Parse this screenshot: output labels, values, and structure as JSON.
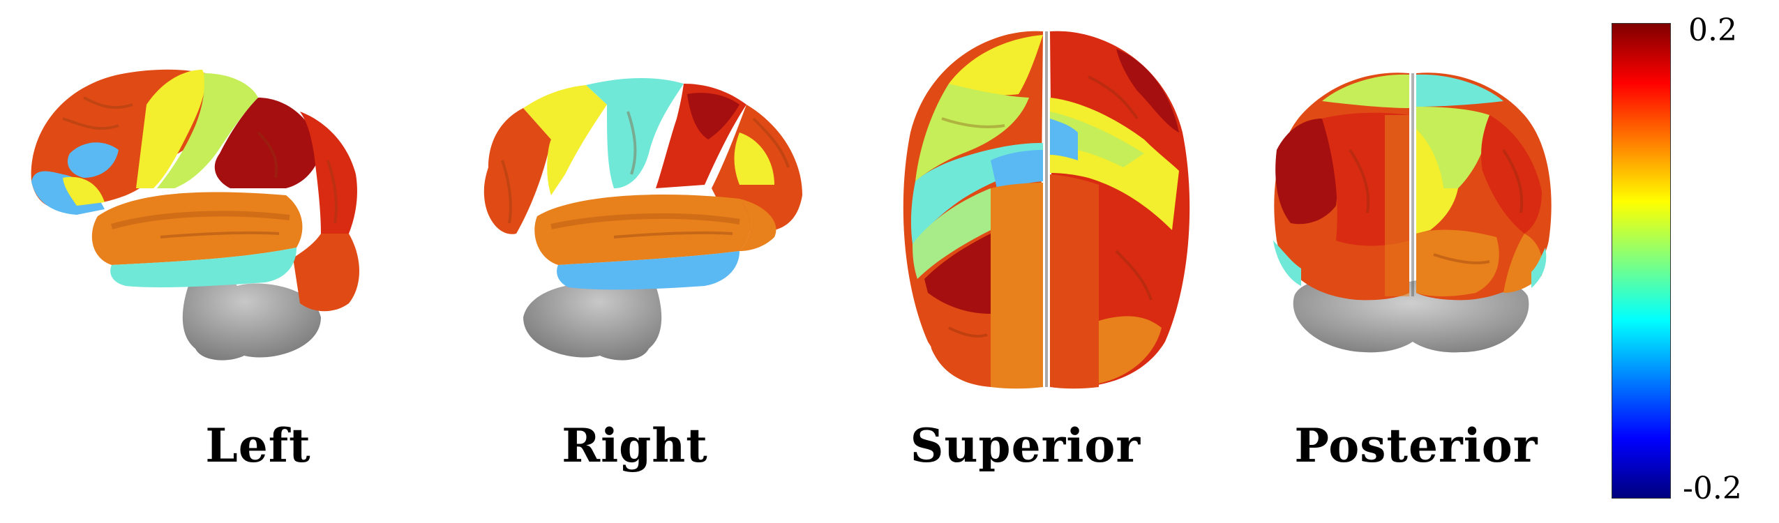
{
  "views": [
    {
      "name": "left",
      "label": "Left"
    },
    {
      "name": "right",
      "label": "Right"
    },
    {
      "name": "superior",
      "label": "Superior"
    },
    {
      "name": "posterior",
      "label": "Posterior"
    }
  ],
  "colorbar": {
    "max_label": "0.2",
    "min_label": "-0.2",
    "max_value": 0.2,
    "min_value": -0.2,
    "colormap": "jet",
    "stops": [
      "#00007f",
      "#0000ff",
      "#007fff",
      "#00ffff",
      "#7fff7f",
      "#ffff00",
      "#ff7f00",
      "#ff0000",
      "#7f0000"
    ]
  },
  "colors": {
    "cerebellum": "#9a9a9a",
    "dark_red": "#a50f0f",
    "red": "#d92b12",
    "red_orange": "#e04a14",
    "orange": "#e8801c",
    "yellow": "#f3ee2e",
    "yellow_green": "#c6ee58",
    "light_green": "#a8ec8a",
    "aqua": "#6fe8d8",
    "light_blue": "#5ab8f2"
  }
}
